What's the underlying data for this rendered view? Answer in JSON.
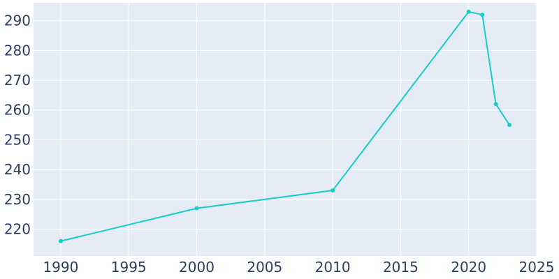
{
  "chart_data": {
    "type": "line",
    "title": "",
    "xlabel": "",
    "ylabel": "",
    "xlim": [
      1988,
      2025
    ],
    "ylim": [
      211,
      296
    ],
    "x_ticks": [
      1990,
      1995,
      2000,
      2005,
      2010,
      2015,
      2020,
      2025
    ],
    "y_ticks": [
      220,
      230,
      240,
      250,
      260,
      270,
      280,
      290
    ],
    "grid": true,
    "legend": "none",
    "colors": {
      "line": "#17cdc8",
      "plot_background": "#e5ecf6",
      "grid": "#ffffff",
      "tick_text": "#2a3f5f"
    },
    "series": [
      {
        "x": [
          1990,
          2000,
          2010,
          2020,
          2021,
          2022,
          2023
        ],
        "y": [
          216,
          227,
          233,
          293,
          292,
          262,
          255
        ]
      }
    ]
  }
}
